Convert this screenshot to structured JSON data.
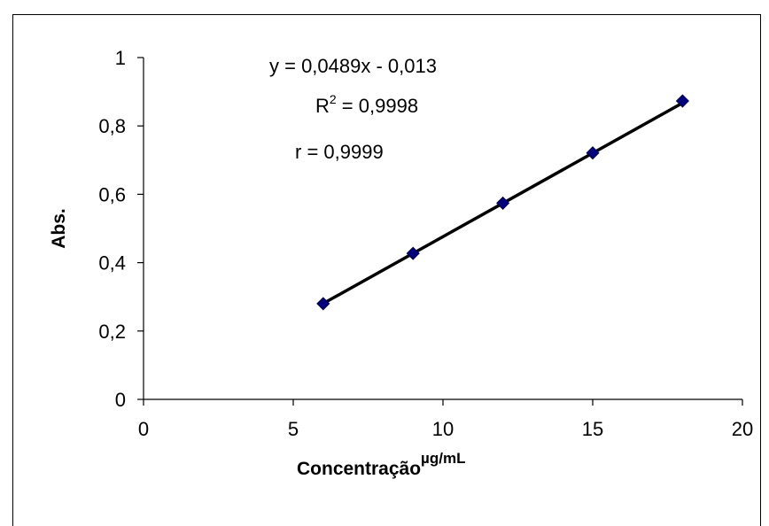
{
  "chart_data": {
    "type": "scatter",
    "ylabel": "Abs.",
    "xlabel_main": "Concentração",
    "xlabel_unit": "µg/mL",
    "xlim": [
      0,
      20
    ],
    "ylim": [
      0,
      1
    ],
    "x_ticks": [
      0,
      5,
      10,
      15,
      20
    ],
    "x_tick_labels": [
      "0",
      "5",
      "10",
      "15",
      "20"
    ],
    "y_ticks": [
      0,
      0.2,
      0.4,
      0.6,
      0.8,
      1
    ],
    "y_tick_labels": [
      "0",
      "0,2",
      "0,4",
      "0,6",
      "0,8",
      "1"
    ],
    "grid": false,
    "marker_color": "#00007f",
    "line_color": "#000000",
    "series": [
      {
        "x": [
          6,
          9,
          12,
          15,
          18
        ],
        "y": [
          0.28,
          0.427,
          0.574,
          0.721,
          0.873
        ]
      }
    ],
    "trendline": {
      "slope": 0.0489,
      "intercept": -0.013,
      "x_from": 6,
      "x_to": 18
    },
    "annotations": {
      "equation": "y = 0,0489x - 0,013",
      "r2_prefix": "R",
      "r2_sup": "2",
      "r2_rest": " = 0,9998",
      "r": "r = 0,9999"
    }
  }
}
